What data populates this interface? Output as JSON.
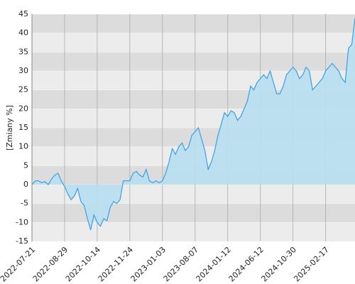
{
  "chart_data": {
    "type": "area",
    "y_label": "[Zmiany %]",
    "categories": [
      "2022-07-21",
      null,
      null,
      null,
      null,
      null,
      null,
      null,
      null,
      null,
      "2022-08-29",
      null,
      null,
      null,
      null,
      null,
      null,
      null,
      null,
      null,
      "2022-10-14",
      null,
      null,
      null,
      null,
      null,
      null,
      null,
      null,
      null,
      "2022-11-24",
      null,
      null,
      null,
      null,
      null,
      null,
      null,
      null,
      null,
      "2023-01-03",
      null,
      null,
      null,
      null,
      null,
      null,
      null,
      null,
      null,
      "2023-08-07",
      null,
      null,
      null,
      null,
      null,
      null,
      null,
      null,
      null,
      "2024-01-12",
      null,
      null,
      null,
      null,
      null,
      null,
      null,
      null,
      null,
      "2024-06-12",
      null,
      null,
      null,
      null,
      null,
      null,
      null,
      null,
      null,
      "2024-10-30",
      null,
      null,
      null,
      null,
      null,
      null,
      null,
      null,
      null,
      "2025-02-17",
      null,
      null,
      null,
      null,
      null,
      null,
      null,
      null,
      null
    ],
    "values": [
      0,
      1,
      1,
      0.5,
      0.8,
      0,
      1.5,
      2.5,
      3,
      1,
      -0.5,
      -2.5,
      -4,
      -3,
      -1,
      -4.5,
      -5.5,
      -9,
      -12,
      -8,
      -10,
      -11,
      -9,
      -9.5,
      -6,
      -4.5,
      -5,
      -4,
      1,
      1,
      1,
      3,
      3.5,
      2.5,
      2,
      4,
      1,
      0.5,
      1,
      0.5,
      1,
      3,
      6,
      9.5,
      8,
      10,
      11,
      9,
      10,
      13,
      14,
      15,
      12,
      9,
      4,
      6,
      9,
      13,
      16,
      19,
      18,
      19.5,
      19,
      17,
      18,
      20,
      22,
      26,
      25,
      27,
      28,
      29,
      28,
      30,
      27,
      24,
      24,
      26,
      29,
      30,
      31,
      30,
      28,
      29,
      31,
      30,
      25,
      26,
      27,
      28,
      30,
      31,
      32,
      31,
      30,
      28,
      27,
      36,
      37,
      44
    ],
    "color": "#3b9fe6",
    "fill_color": "#b7dff0",
    "ylim": [
      -15,
      45
    ],
    "yticks": [
      -15,
      -10,
      -5,
      0,
      5,
      10,
      15,
      20,
      25,
      30,
      35,
      40,
      45
    ],
    "grid": true
  }
}
